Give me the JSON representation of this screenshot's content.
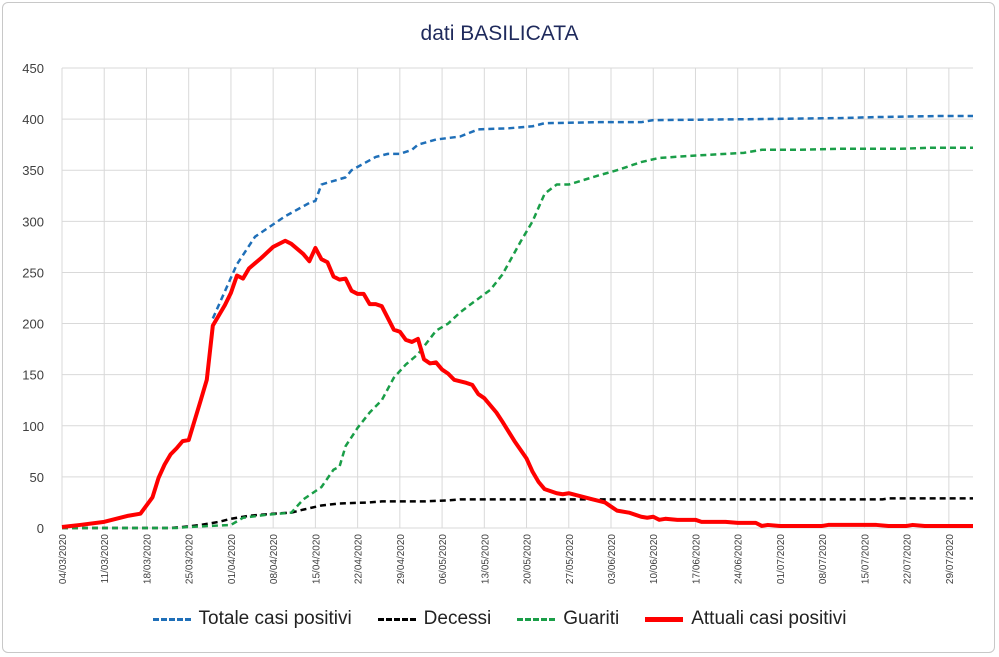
{
  "chart_data": {
    "type": "line",
    "title": "dati BASILICATA",
    "xlabel": "",
    "ylabel": "",
    "ylim": [
      0,
      450
    ],
    "yticks": [
      0,
      50,
      100,
      150,
      200,
      250,
      300,
      350,
      400,
      450
    ],
    "x_start": "04/03/2020",
    "x_days": 151,
    "xtick_labels": [
      "04/03/2020",
      "11/03/2020",
      "18/03/2020",
      "25/03/2020",
      "01/04/2020",
      "08/04/2020",
      "15/04/2020",
      "22/04/2020",
      "29/04/2020",
      "06/05/2020",
      "13/05/2020",
      "20/05/2020",
      "27/05/2020",
      "03/06/2020",
      "10/06/2020",
      "17/06/2020",
      "24/06/2020",
      "01/07/2020",
      "08/07/2020",
      "15/07/2020",
      "22/07/2020",
      "29/07/2020"
    ],
    "grid": true,
    "legend": "bottom",
    "series": [
      {
        "name": "Totale casi positivi",
        "color": "#1f6fb8",
        "style": "dashed",
        "points": [
          [
            25,
            205
          ],
          [
            29,
            258
          ],
          [
            32,
            285
          ],
          [
            37,
            305
          ],
          [
            41,
            318
          ],
          [
            42,
            320
          ],
          [
            43,
            336
          ],
          [
            47,
            343
          ],
          [
            48,
            350
          ],
          [
            52,
            363
          ],
          [
            54,
            366
          ],
          [
            56,
            366
          ],
          [
            58,
            370
          ],
          [
            59,
            375
          ],
          [
            62,
            380
          ],
          [
            66,
            383
          ],
          [
            69,
            390
          ],
          [
            74,
            391
          ],
          [
            78,
            393
          ],
          [
            80,
            396
          ],
          [
            89,
            397
          ],
          [
            96,
            397
          ],
          [
            98,
            399
          ],
          [
            115,
            400
          ],
          [
            129,
            401
          ],
          [
            135,
            402
          ],
          [
            145,
            403
          ],
          [
            151,
            403
          ]
        ]
      },
      {
        "name": "Decessi",
        "color": "#000000",
        "style": "dashed",
        "points": [
          [
            0,
            0
          ],
          [
            18,
            0
          ],
          [
            20,
            1
          ],
          [
            23,
            3
          ],
          [
            26,
            6
          ],
          [
            28,
            9
          ],
          [
            31,
            12
          ],
          [
            35,
            14
          ],
          [
            38,
            15
          ],
          [
            40,
            18
          ],
          [
            43,
            22
          ],
          [
            46,
            24
          ],
          [
            51,
            25
          ],
          [
            53,
            26
          ],
          [
            60,
            26
          ],
          [
            64,
            27
          ],
          [
            66,
            28
          ],
          [
            136,
            28
          ],
          [
            137,
            29
          ],
          [
            151,
            29
          ]
        ]
      },
      {
        "name": "Guariti",
        "color": "#1a9e48",
        "style": "dashed",
        "points": [
          [
            0,
            0
          ],
          [
            19,
            0
          ],
          [
            21,
            1
          ],
          [
            28,
            3
          ],
          [
            30,
            10
          ],
          [
            34,
            13
          ],
          [
            38,
            15
          ],
          [
            40,
            28
          ],
          [
            43,
            40
          ],
          [
            45,
            57
          ],
          [
            46,
            60
          ],
          [
            47,
            80
          ],
          [
            49,
            98
          ],
          [
            51,
            113
          ],
          [
            53,
            125
          ],
          [
            55,
            147
          ],
          [
            57,
            160
          ],
          [
            59,
            170
          ],
          [
            62,
            193
          ],
          [
            64,
            200
          ],
          [
            66,
            211
          ],
          [
            68,
            220
          ],
          [
            71,
            233
          ],
          [
            73,
            248
          ],
          [
            76,
            280
          ],
          [
            78,
            300
          ],
          [
            80,
            327
          ],
          [
            82,
            336
          ],
          [
            84,
            336
          ],
          [
            89,
            345
          ],
          [
            92,
            350
          ],
          [
            96,
            358
          ],
          [
            99,
            362
          ],
          [
            104,
            364
          ],
          [
            110,
            366
          ],
          [
            113,
            367
          ],
          [
            116,
            370
          ],
          [
            122,
            370
          ],
          [
            129,
            371
          ],
          [
            139,
            371
          ],
          [
            144,
            372
          ],
          [
            151,
            372
          ]
        ]
      },
      {
        "name": "Attuali casi positivi",
        "color": "#ff0000",
        "style": "solid",
        "points": [
          [
            0,
            1
          ],
          [
            3,
            3
          ],
          [
            7,
            6
          ],
          [
            11,
            12
          ],
          [
            13,
            14
          ],
          [
            15,
            30
          ],
          [
            16,
            49
          ],
          [
            17,
            62
          ],
          [
            18,
            72
          ],
          [
            19,
            78
          ],
          [
            20,
            85
          ],
          [
            21,
            86
          ],
          [
            23,
            125
          ],
          [
            24,
            145
          ],
          [
            25,
            198
          ],
          [
            27,
            218
          ],
          [
            28,
            230
          ],
          [
            29,
            247
          ],
          [
            30,
            244
          ],
          [
            31,
            254
          ],
          [
            33,
            264
          ],
          [
            35,
            275
          ],
          [
            37,
            281
          ],
          [
            38,
            278
          ],
          [
            40,
            268
          ],
          [
            41,
            261
          ],
          [
            42,
            274
          ],
          [
            43,
            263
          ],
          [
            44,
            260
          ],
          [
            45,
            246
          ],
          [
            46,
            243
          ],
          [
            47,
            244
          ],
          [
            48,
            232
          ],
          [
            49,
            229
          ],
          [
            50,
            229
          ],
          [
            51,
            219
          ],
          [
            52,
            219
          ],
          [
            53,
            217
          ],
          [
            55,
            194
          ],
          [
            56,
            192
          ],
          [
            57,
            184
          ],
          [
            58,
            182
          ],
          [
            59,
            185
          ],
          [
            60,
            165
          ],
          [
            61,
            161
          ],
          [
            62,
            162
          ],
          [
            63,
            155
          ],
          [
            64,
            151
          ],
          [
            65,
            145
          ],
          [
            67,
            142
          ],
          [
            68,
            140
          ],
          [
            69,
            131
          ],
          [
            70,
            127
          ],
          [
            72,
            113
          ],
          [
            73,
            104
          ],
          [
            75,
            85
          ],
          [
            77,
            68
          ],
          [
            78,
            55
          ],
          [
            79,
            45
          ],
          [
            80,
            38
          ],
          [
            82,
            34
          ],
          [
            83,
            33
          ],
          [
            84,
            34
          ],
          [
            86,
            31
          ],
          [
            88,
            28
          ],
          [
            90,
            25
          ],
          [
            91,
            21
          ],
          [
            92,
            17
          ],
          [
            94,
            15
          ],
          [
            96,
            11
          ],
          [
            97,
            10
          ],
          [
            98,
            11
          ],
          [
            99,
            8
          ],
          [
            100,
            9
          ],
          [
            102,
            8
          ],
          [
            105,
            8
          ],
          [
            106,
            6
          ],
          [
            110,
            6
          ],
          [
            112,
            5
          ],
          [
            115,
            5
          ],
          [
            116,
            2
          ],
          [
            117,
            3
          ],
          [
            119,
            2
          ],
          [
            126,
            2
          ],
          [
            127,
            3
          ],
          [
            135,
            3
          ],
          [
            137,
            2
          ],
          [
            140,
            2
          ],
          [
            141,
            3
          ],
          [
            143,
            2
          ],
          [
            151,
            2
          ]
        ]
      }
    ]
  }
}
